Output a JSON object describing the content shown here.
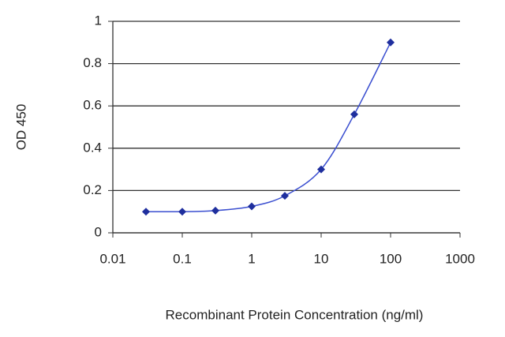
{
  "chart_data": {
    "type": "line",
    "x_label": "Recombinant Protein Concentration (ng/ml)",
    "y_label": "OD 450",
    "x": [
      0.03,
      0.1,
      0.3,
      1,
      3,
      10,
      30,
      100
    ],
    "series": [
      {
        "name": null,
        "color": "#1f2f9e",
        "values": [
          0.1,
          0.1,
          0.105,
          0.125,
          0.175,
          0.3,
          0.56,
          0.9
        ]
      }
    ],
    "xscale": "log",
    "xlim": [
      0.01,
      1000
    ],
    "xticks": [
      0.01,
      0.1,
      1,
      10,
      100,
      1000
    ],
    "ylim": [
      0,
      1
    ],
    "yticks": [
      0,
      0.2,
      0.4,
      0.6,
      0.8,
      1
    ],
    "grid": true
  }
}
